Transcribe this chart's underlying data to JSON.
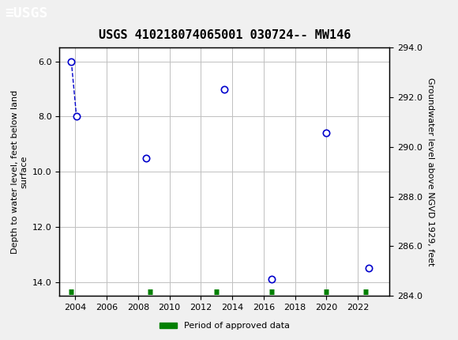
{
  "title": "USGS 410218074065001 030724-- MW146",
  "ylabel_left": "Depth to water level, feet below land\nsurface",
  "ylabel_right": "Groundwater level above NGVD 1929, feet",
  "xlim": [
    2003,
    2024
  ],
  "ylim_left": [
    14.5,
    5.5
  ],
  "ylim_right": [
    284.0,
    294.0
  ],
  "xticks": [
    2004,
    2006,
    2008,
    2010,
    2012,
    2014,
    2016,
    2018,
    2020,
    2022
  ],
  "yticks_left": [
    6.0,
    8.0,
    10.0,
    12.0,
    14.0
  ],
  "yticks_right": [
    284.0,
    286.0,
    288.0,
    290.0,
    292.0,
    294.0
  ],
  "data_x": [
    2003.75,
    2004.08,
    2008.5,
    2013.5,
    2016.5,
    2020.0,
    2022.7
  ],
  "data_y_depth": [
    6.0,
    8.0,
    9.5,
    7.0,
    13.9,
    8.6,
    13.5
  ],
  "connected_indices": [
    0,
    1
  ],
  "dot_color": "#0000cc",
  "dot_facecolor": "white",
  "dot_edgecolor": "#0000cc",
  "line_color": "#0000cc",
  "line_style": "--",
  "marker_size": 6,
  "header_color": "#1a5e3c",
  "header_text_color": "white",
  "grid_color": "#c0c0c0",
  "approved_bar_x": [
    2003.75,
    2008.75,
    2013.0,
    2016.5,
    2020.0,
    2022.5
  ],
  "approved_bar_y": [
    14.5,
    14.5,
    14.5,
    14.5,
    14.5,
    14.5
  ],
  "approved_color": "#008000",
  "legend_label": "Period of approved data",
  "background_color": "#f0f0f0",
  "plot_bg_color": "white"
}
